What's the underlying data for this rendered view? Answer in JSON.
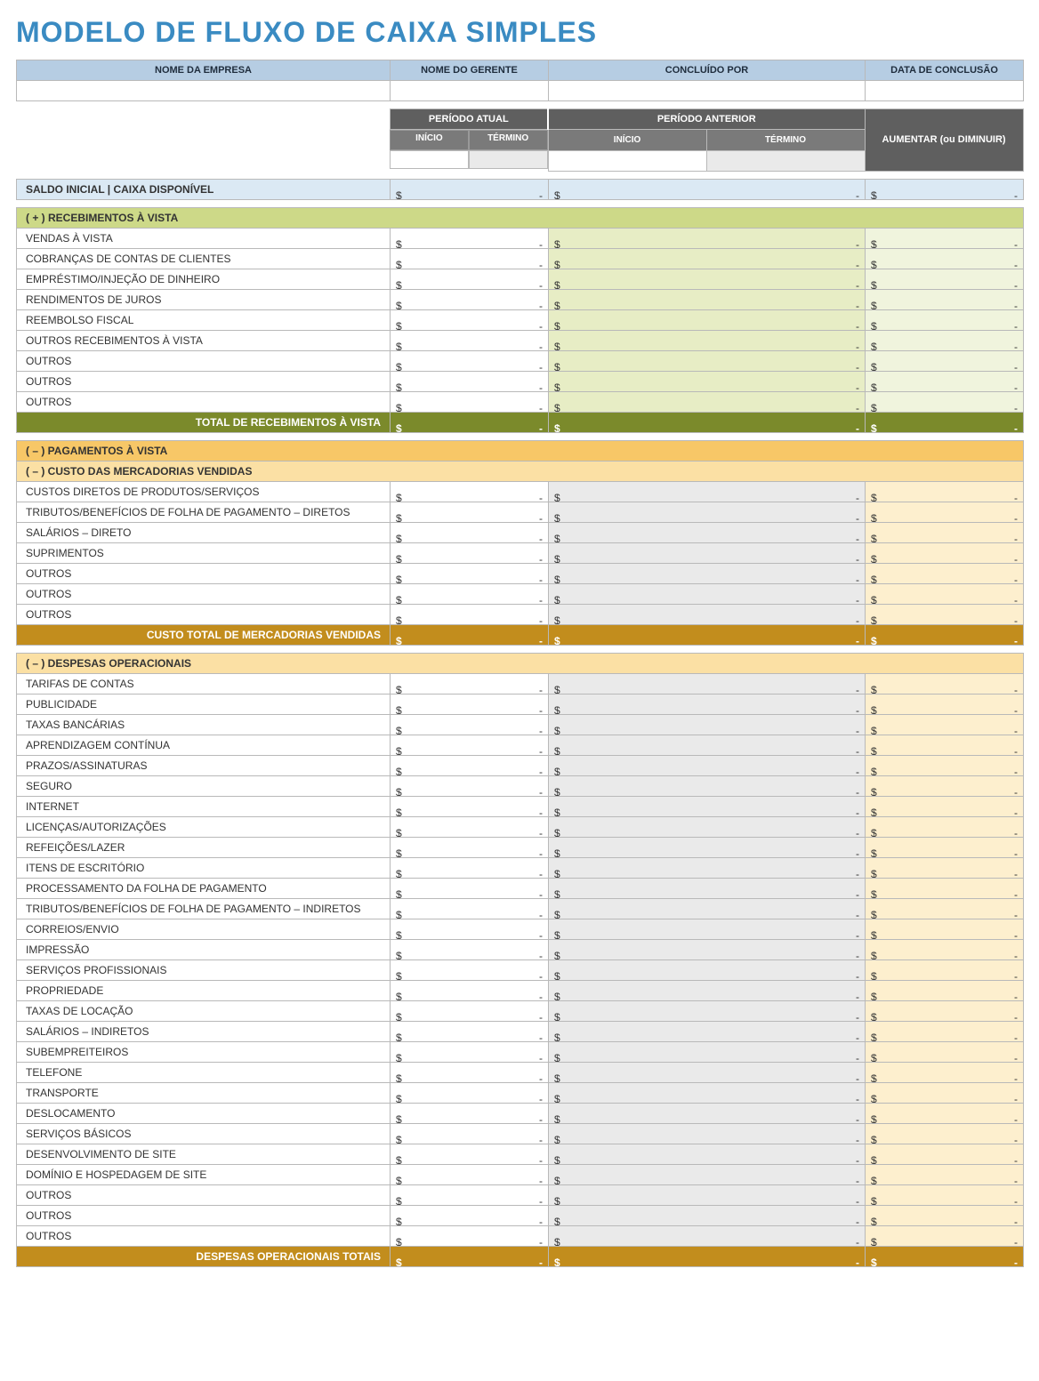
{
  "title": "MODELO DE FLUXO DE CAIXA SIMPLES",
  "title_color": "#3a8bc2",
  "info_headers": [
    "NOME DA EMPRESA",
    "NOME DO GERENTE",
    "CONCLUÍDO POR",
    "DATA DE CONCLUSÃO"
  ],
  "period": {
    "current": "PERÍODO ATUAL",
    "previous": "PERÍODO ANTERIOR",
    "increase": "AUMENTAR (ou DIMINUIR)",
    "start": "INÍCIO",
    "end": "TÉRMINO"
  },
  "opening_balance": "SALDO INICIAL | CAIXA DISPONÍVEL",
  "receipts": {
    "header": "( + ) RECEBIMENTOS À VISTA",
    "rows": [
      "VENDAS À VISTA",
      "COBRANÇAS DE CONTAS DE CLIENTES",
      "EMPRÉSTIMO/INJEÇÃO DE DINHEIRO",
      "RENDIMENTOS DE JUROS",
      "REEMBOLSO FISCAL",
      "OUTROS RECEBIMENTOS À VISTA",
      "OUTROS",
      "OUTROS",
      "OUTROS"
    ],
    "total": "TOTAL DE RECEBIMENTOS À VISTA"
  },
  "payments_header": "( – ) PAGAMENTOS À VISTA",
  "cogs": {
    "header": "( – ) CUSTO DAS MERCADORIAS VENDIDAS",
    "rows": [
      "CUSTOS DIRETOS DE PRODUTOS/SERVIÇOS",
      "TRIBUTOS/BENEFÍCIOS DE FOLHA DE PAGAMENTO – DIRETOS",
      "SALÁRIOS – DIRETO",
      "SUPRIMENTOS",
      "OUTROS",
      "OUTROS",
      "OUTROS"
    ],
    "total": "CUSTO TOTAL DE MERCADORIAS VENDIDAS"
  },
  "opex": {
    "header": "( – ) DESPESAS OPERACIONAIS",
    "rows": [
      "TARIFAS DE CONTAS",
      "PUBLICIDADE",
      "TAXAS BANCÁRIAS",
      "APRENDIZAGEM CONTÍNUA",
      "PRAZOS/ASSINATURAS",
      "SEGURO",
      "INTERNET",
      "LICENÇAS/AUTORIZAÇÕES",
      "REFEIÇÕES/LAZER",
      "ITENS DE ESCRITÓRIO",
      "PROCESSAMENTO DA FOLHA DE PAGAMENTO",
      "TRIBUTOS/BENEFÍCIOS DE FOLHA DE PAGAMENTO – INDIRETOS",
      "CORREIOS/ENVIO",
      "IMPRESSÃO",
      "SERVIÇOS PROFISSIONAIS",
      "PROPRIEDADE",
      "TAXAS DE LOCAÇÃO",
      "SALÁRIOS – INDIRETOS",
      "SUBEMPREITEIROS",
      "TELEFONE",
      "TRANSPORTE",
      "DESLOCAMENTO",
      "SERVIÇOS BÁSICOS",
      "DESENVOLVIMENTO DE SITE",
      "DOMÍNIO E HOSPEDAGEM DE SITE",
      "OUTROS",
      "OUTROS",
      "OUTROS"
    ],
    "total": "DESPESAS OPERACIONAIS TOTAIS"
  },
  "colors": {
    "title": "#3a8bc2",
    "hdr_blue": "#b6cde3",
    "hdr_gray_dark": "#5f5f5f",
    "hdr_gray_mid": "#7a7a7a",
    "row_blue_light": "#dbe9f4",
    "section_green": "#cdd988",
    "row_green_b": "#e7edc5",
    "row_green_c": "#f0f4dd",
    "total_green": "#7b8a2b",
    "section_orange": "#f7c767",
    "section_orange_light": "#fbe0a4",
    "row_orange_b": "#eaeaea",
    "row_orange_c": "#fdefce",
    "total_orange": "#c28d1d",
    "border": "#b9b9b9"
  }
}
